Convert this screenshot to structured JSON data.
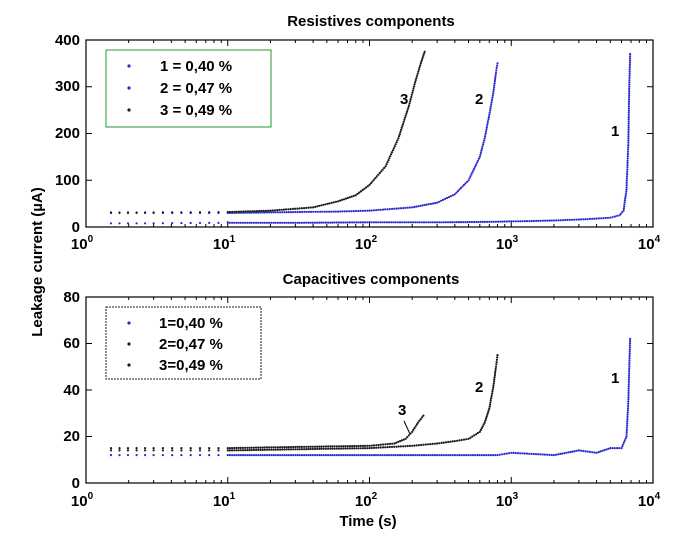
{
  "chart_data": [
    {
      "type": "scatter",
      "title": "Resistives components",
      "xlabel": "",
      "ylabel": "Leakage current (µA)",
      "x_scale": "log",
      "xlim": [
        1,
        10000
      ],
      "ylim": [
        0,
        400
      ],
      "y_ticks": [
        "0",
        "100",
        "200",
        "300",
        "400"
      ],
      "x_ticks": [
        {
          "base": "10",
          "exp": "0"
        },
        {
          "base": "10",
          "exp": "1"
        },
        {
          "base": "10",
          "exp": "2"
        },
        {
          "base": "10",
          "exp": "3"
        },
        {
          "base": "10",
          "exp": "4"
        }
      ],
      "legend_position": "top-left",
      "legend": [
        "1 = 0,40 %",
        "2 = 0,47 %",
        "3 = 0,49 %"
      ],
      "series_colors": [
        "#2a2ad0",
        "#2a2ad0",
        "#1a1a1a"
      ],
      "annotations": [
        "3",
        "2",
        "1"
      ],
      "series": [
        {
          "name": "1 = 0,40 %",
          "x": [
            1.5,
            3,
            10,
            30,
            100,
            300,
            700,
            1000,
            1500,
            2000,
            3000,
            4000,
            5000,
            5800,
            6200,
            6500,
            6700,
            6800,
            6900
          ],
          "y": [
            8,
            8,
            9,
            9,
            10,
            10,
            11,
            12,
            13,
            14,
            16,
            18,
            20,
            25,
            35,
            80,
            180,
            300,
            370
          ]
        },
        {
          "name": "2 = 0,47 %",
          "x": [
            1.5,
            3,
            10,
            30,
            60,
            100,
            200,
            300,
            400,
            500,
            600,
            650,
            700,
            750,
            780,
            800
          ],
          "y": [
            30,
            30,
            30,
            32,
            33,
            35,
            42,
            52,
            70,
            100,
            150,
            190,
            240,
            290,
            330,
            350
          ]
        },
        {
          "name": "3 = 0,49 %",
          "x": [
            1.5,
            3,
            10,
            20,
            40,
            60,
            80,
            100,
            130,
            160,
            190,
            210,
            230,
            245
          ],
          "y": [
            31,
            31,
            32,
            35,
            42,
            55,
            68,
            90,
            130,
            190,
            260,
            310,
            350,
            375
          ]
        }
      ]
    },
    {
      "type": "scatter",
      "title": "Capacitives components",
      "xlabel": "Time (s)",
      "ylabel": "Leakage current (µA)",
      "x_scale": "log",
      "xlim": [
        1,
        10000
      ],
      "ylim": [
        0,
        80
      ],
      "y_ticks": [
        "0",
        "20",
        "40",
        "60",
        "80"
      ],
      "x_ticks": [
        {
          "base": "10",
          "exp": "0"
        },
        {
          "base": "10",
          "exp": "1"
        },
        {
          "base": "10",
          "exp": "2"
        },
        {
          "base": "10",
          "exp": "3"
        },
        {
          "base": "10",
          "exp": "4"
        }
      ],
      "legend_position": "top-left",
      "legend": [
        "1=0,40 %",
        "2=0,47 %",
        "3=0,49 %"
      ],
      "series_colors": [
        "#2a2ad0",
        "#1a1a1a",
        "#1a1a1a"
      ],
      "annotations": [
        "3",
        "2",
        "1"
      ],
      "series": [
        {
          "name": "1=0,40 %",
          "x": [
            1.5,
            3,
            10,
            30,
            100,
            300,
            800,
            1000,
            2000,
            3000,
            4000,
            5000,
            6000,
            6500,
            6700,
            6800,
            6900
          ],
          "y": [
            12,
            12,
            12,
            12,
            12,
            12,
            12,
            13,
            12,
            14,
            13,
            15,
            15,
            20,
            35,
            50,
            62
          ]
        },
        {
          "name": "2=0,47 %",
          "x": [
            1.5,
            3,
            10,
            30,
            100,
            200,
            300,
            400,
            500,
            600,
            650,
            700,
            750,
            780,
            800
          ],
          "y": [
            14,
            14,
            14,
            14.5,
            15,
            16,
            17,
            18,
            19,
            22,
            26,
            32,
            42,
            50,
            55
          ]
        },
        {
          "name": "3=0,49 %",
          "x": [
            1.5,
            3,
            10,
            30,
            100,
            150,
            180,
            200,
            220,
            240
          ],
          "y": [
            15,
            15,
            15,
            15.5,
            16,
            17,
            19,
            22,
            26,
            29
          ]
        }
      ]
    }
  ]
}
